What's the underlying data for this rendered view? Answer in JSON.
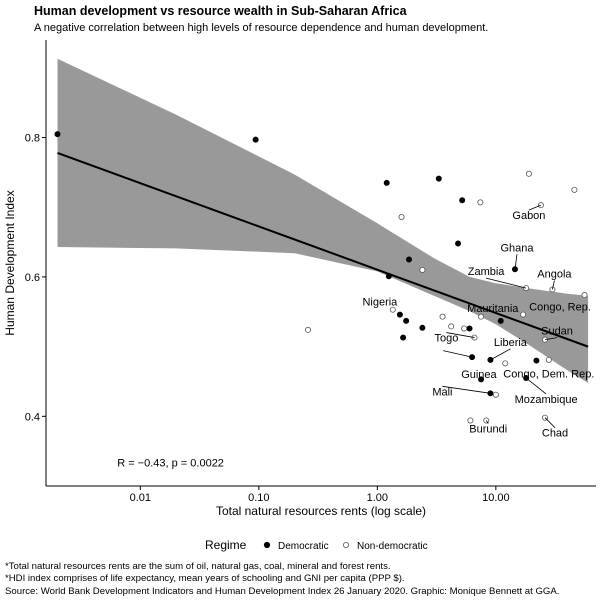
{
  "title": "Human development vs resource wealth in Sub-Saharan Africa",
  "subtitle": "A negative correlation between high levels of resource dependence and human development.",
  "footnotes": [
    "*Total natural resources rents are the sum of oil, natural gas, coal, mineral and forest rents.",
    "*HDI index comprises of life expectancy, mean years of schooling and GNI per capita (PPP $).",
    "Source: World Bank Development Indicators and Human Development Index 26 January 2020. Graphic: Monique Bennett at GGA."
  ],
  "chart_data": {
    "type": "scatter",
    "xlabel": "Total natural resources rents (log scale)",
    "ylabel": "Human Development Index",
    "x_scale": "log",
    "xlim": [
      0.0016,
      70
    ],
    "ylim": [
      0.3,
      0.94
    ],
    "x_ticks": [
      0.01,
      0.1,
      1,
      10
    ],
    "x_tick_labels": [
      "0.01",
      "0.10",
      "1.00",
      "10.00"
    ],
    "y_ticks": [
      0.4,
      0.6,
      0.8
    ],
    "y_tick_labels": [
      "0.4",
      "0.6",
      "0.8"
    ],
    "grid": false,
    "annotation": "R = −0.43, p = 0.0022",
    "legend": {
      "title": "Regime",
      "position": "bottom",
      "entries": [
        {
          "label": "Democratic",
          "marker": "filled-circle"
        },
        {
          "label": "Non-democratic",
          "marker": "open-circle"
        }
      ]
    },
    "trend_line": {
      "x": [
        0.002,
        60
      ],
      "y": [
        0.778,
        0.5
      ]
    },
    "confidence_band": {
      "x": [
        0.002,
        0.02,
        0.2,
        1,
        3,
        6,
        10,
        20,
        40,
        60
      ],
      "upper": [
        0.913,
        0.833,
        0.747,
        0.677,
        0.627,
        0.6,
        0.591,
        0.583,
        0.576,
        0.573
      ],
      "lower": [
        0.643,
        0.641,
        0.634,
        0.608,
        0.573,
        0.551,
        0.532,
        0.5,
        0.466,
        0.448
      ]
    },
    "series": [
      {
        "name": "Democratic",
        "points": [
          {
            "x": 0.002,
            "y": 0.805,
            "label": ""
          },
          {
            "x": 0.094,
            "y": 0.797,
            "label": ""
          },
          {
            "x": 1.2,
            "y": 0.735,
            "label": ""
          },
          {
            "x": 3.3,
            "y": 0.741,
            "label": ""
          },
          {
            "x": 5.2,
            "y": 0.71,
            "label": ""
          },
          {
            "x": 4.8,
            "y": 0.648,
            "label": ""
          },
          {
            "x": 1.85,
            "y": 0.625,
            "label": ""
          },
          {
            "x": 1.25,
            "y": 0.601,
            "label": ""
          },
          {
            "x": 14.5,
            "y": 0.611,
            "label": "Ghana"
          },
          {
            "x": 1.55,
            "y": 0.546,
            "label": "Nigeria"
          },
          {
            "x": 1.75,
            "y": 0.537,
            "label": ""
          },
          {
            "x": 11.0,
            "y": 0.537,
            "label": "Mauritania"
          },
          {
            "x": 2.4,
            "y": 0.527,
            "label": ""
          },
          {
            "x": 6.0,
            "y": 0.526,
            "label": ""
          },
          {
            "x": 1.65,
            "y": 0.513,
            "label": ""
          },
          {
            "x": 6.3,
            "y": 0.485,
            "label": ""
          },
          {
            "x": 9.0,
            "y": 0.481,
            "label": "Liberia"
          },
          {
            "x": 22.0,
            "y": 0.48,
            "label": "Congo, Dem. Rep."
          },
          {
            "x": 7.5,
            "y": 0.453,
            "label": "Guinea"
          },
          {
            "x": 18.0,
            "y": 0.455,
            "label": "Mozambique"
          },
          {
            "x": 9.0,
            "y": 0.433,
            "label": "Mali"
          }
        ]
      },
      {
        "name": "Non-democratic",
        "points": [
          {
            "x": 19.0,
            "y": 0.748,
            "label": ""
          },
          {
            "x": 46.0,
            "y": 0.725,
            "label": ""
          },
          {
            "x": 7.4,
            "y": 0.707,
            "label": ""
          },
          {
            "x": 1.6,
            "y": 0.686,
            "label": ""
          },
          {
            "x": 24.0,
            "y": 0.703,
            "label": "Gabon"
          },
          {
            "x": 2.4,
            "y": 0.61,
            "label": ""
          },
          {
            "x": 18.0,
            "y": 0.584,
            "label": "Zambia"
          },
          {
            "x": 30.0,
            "y": 0.582,
            "label": "Angola"
          },
          {
            "x": 56.0,
            "y": 0.574,
            "label": ""
          },
          {
            "x": 17.0,
            "y": 0.546,
            "label": "Congo, Rep."
          },
          {
            "x": 1.35,
            "y": 0.553,
            "label": ""
          },
          {
            "x": 3.55,
            "y": 0.543,
            "label": ""
          },
          {
            "x": 7.5,
            "y": 0.543,
            "label": ""
          },
          {
            "x": 4.2,
            "y": 0.529,
            "label": ""
          },
          {
            "x": 5.4,
            "y": 0.526,
            "label": ""
          },
          {
            "x": 6.6,
            "y": 0.513,
            "label": "Togo"
          },
          {
            "x": 26.0,
            "y": 0.51,
            "label": "Sudan"
          },
          {
            "x": 0.26,
            "y": 0.524,
            "label": ""
          },
          {
            "x": 12.0,
            "y": 0.476,
            "label": ""
          },
          {
            "x": 28.0,
            "y": 0.481,
            "label": ""
          },
          {
            "x": 10.0,
            "y": 0.431,
            "label": ""
          },
          {
            "x": 8.3,
            "y": 0.394,
            "label": "Burundi"
          },
          {
            "x": 26.0,
            "y": 0.398,
            "label": "Chad"
          },
          {
            "x": 6.1,
            "y": 0.394,
            "label": ""
          }
        ]
      }
    ]
  }
}
